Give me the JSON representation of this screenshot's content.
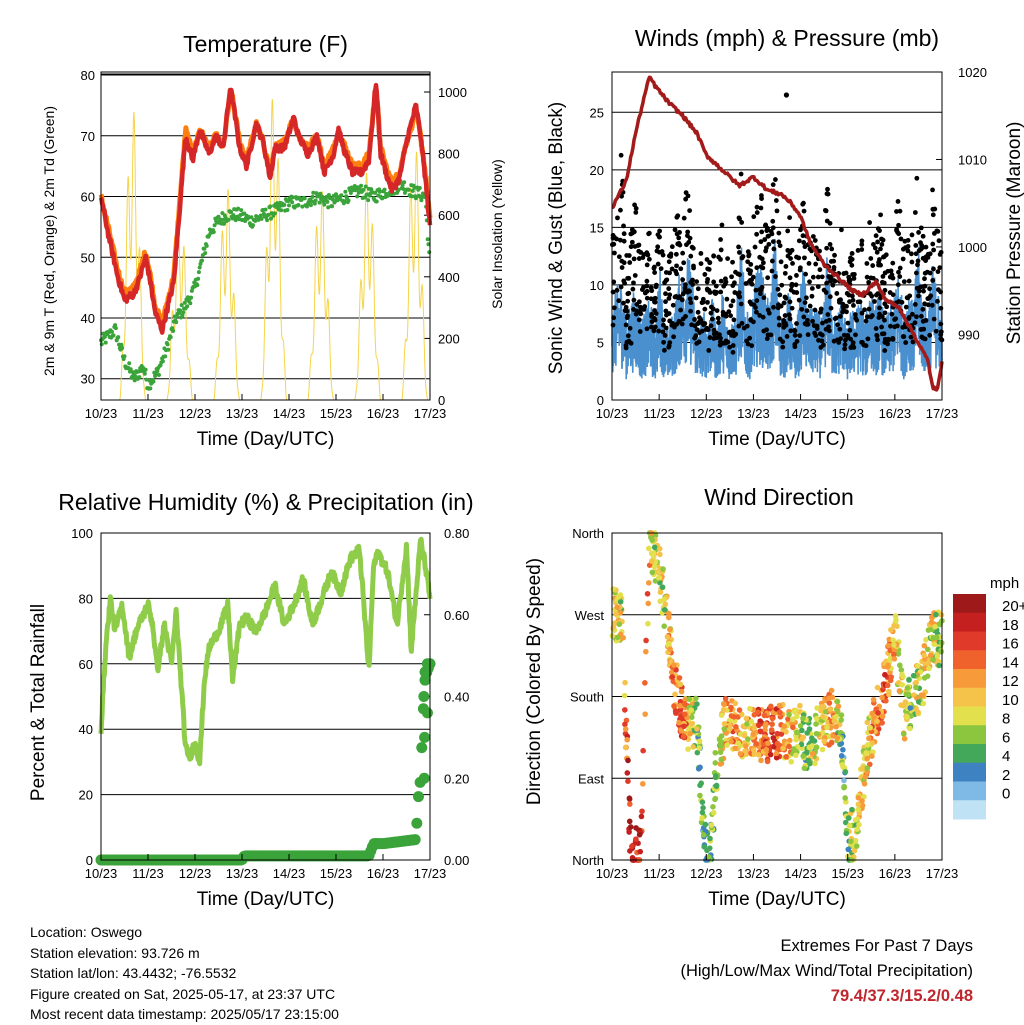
{
  "chart_data": [
    {
      "type": "line",
      "title": "Temperature (F)",
      "xlabel": "Time (Day/UTC)",
      "ylabel": "2m & 9m T (Red, Orange) & 2m Td (Green)",
      "y2label": "Solar Insolation (Yellow)",
      "x_ticks": [
        "10/23",
        "11/23",
        "12/23",
        "13/23",
        "14/23",
        "15/23",
        "16/23",
        "17/23"
      ],
      "ylim": [
        26.5,
        80.5
      ],
      "y_ticks": [
        30,
        40,
        50,
        60,
        70,
        80
      ],
      "y2lim": [
        0,
        1065
      ],
      "y2_ticks": [
        0,
        200,
        400,
        600,
        800,
        1000
      ],
      "grid": true,
      "series": [
        {
          "name": "2m T",
          "color": "#d62728",
          "x": [
            0,
            0.15,
            0.35,
            0.5,
            0.7,
            0.8,
            0.95,
            1.05,
            1.15,
            1.3,
            1.55,
            1.8,
            1.95,
            2.1,
            2.3,
            2.45,
            2.6,
            2.75,
            2.8,
            2.95,
            3.1,
            3.3,
            3.45,
            3.6,
            3.7,
            3.9,
            4.1,
            4.2,
            4.4,
            4.6,
            4.75,
            4.95,
            5.05,
            5.2,
            5.35,
            5.55,
            5.7,
            5.85,
            5.95,
            6.1,
            6.2,
            6.35,
            6.5,
            6.7,
            6.8,
            6.9,
            7.0
          ],
          "values": [
            60,
            54,
            47,
            43,
            44,
            46,
            50,
            46,
            41,
            38,
            46,
            70,
            66,
            71,
            67,
            70,
            68,
            78,
            76,
            68,
            65,
            72,
            69,
            63,
            68,
            68,
            73,
            70,
            67,
            70,
            64,
            67,
            71,
            67,
            64,
            64,
            66,
            79,
            67,
            63,
            61,
            63,
            69,
            75,
            70,
            63,
            55
          ]
        },
        {
          "name": "9m T",
          "color": "#ff7f0e",
          "x": [
            0,
            0.15,
            0.35,
            0.5,
            0.7,
            0.8,
            0.95,
            1.05,
            1.15,
            1.3,
            1.55,
            1.8,
            1.95,
            2.1,
            2.3,
            2.45,
            2.6,
            2.75,
            2.8,
            2.95,
            3.1,
            3.3,
            3.45,
            3.6,
            3.7,
            3.9,
            4.1,
            4.2,
            4.4,
            4.6,
            4.75,
            4.95,
            5.05,
            5.2,
            5.35,
            5.55,
            5.7,
            5.85,
            5.95,
            6.1,
            6.2,
            6.35,
            6.5,
            6.7,
            6.8,
            6.9,
            7.0
          ],
          "values": [
            60,
            55,
            48,
            44,
            45,
            47,
            51,
            47,
            42,
            39,
            47,
            71,
            67,
            71,
            68,
            70,
            68,
            77,
            76,
            69,
            66,
            72,
            69,
            64,
            68,
            69,
            73,
            70,
            68,
            70,
            65,
            68,
            71,
            68,
            65,
            65,
            67,
            78,
            68,
            64,
            62,
            64,
            69,
            74,
            70,
            64,
            56
          ]
        },
        {
          "name": "2m Td",
          "color": "#3aa33a",
          "x": [
            0,
            0.3,
            0.5,
            0.7,
            0.9,
            1.0,
            1.2,
            1.4,
            1.6,
            1.8,
            2.0,
            2.3,
            2.5,
            2.7,
            2.9,
            3.2,
            3.5,
            3.8,
            4.0,
            4.3,
            4.6,
            4.9,
            5.2,
            5.5,
            5.8,
            6.1,
            6.4,
            6.6,
            6.9,
            7.0
          ],
          "values": [
            36,
            38,
            33,
            30,
            32,
            29,
            31,
            35,
            40,
            42,
            45,
            54,
            56,
            57,
            57,
            56,
            57,
            58,
            59,
            59,
            60,
            59,
            60,
            61,
            60,
            61,
            62,
            61,
            60,
            48
          ]
        },
        {
          "name": "Solar Insolation",
          "axis": "y2",
          "color": "#f5d44a",
          "daily_peak": [
            950,
            620,
            700,
            1000,
            700,
            750,
            840,
            1060
          ],
          "values_note": "diurnal cycle per day"
        }
      ]
    },
    {
      "type": "scatter",
      "title": "Winds (mph) & Pressure (mb)",
      "xlabel": "Time (Day/UTC)",
      "ylabel": "Sonic Wind & Gust (Blue, Black)",
      "y2label": "Station Pressure (Maroon)",
      "x_ticks": [
        "10/23",
        "11/23",
        "12/23",
        "13/23",
        "14/23",
        "15/23",
        "16/23",
        "17/23"
      ],
      "ylim": [
        0,
        28.5
      ],
      "y_ticks": [
        0,
        5,
        10,
        15,
        20,
        25
      ],
      "y2lim": [
        982.5,
        1020
      ],
      "y2_ticks": [
        990,
        1000,
        1010,
        1020
      ],
      "grid": true,
      "pressure": {
        "x": [
          0,
          0.3,
          0.5,
          0.7,
          0.8,
          0.9,
          1.2,
          1.5,
          1.8,
          2.0,
          2.3,
          2.7,
          3.0,
          3.3,
          3.6,
          3.8,
          4.0,
          4.2,
          4.5,
          4.8,
          5.1,
          5.3,
          5.6,
          5.8,
          6.1,
          6.3,
          6.5,
          6.7,
          6.8,
          6.9,
          7.0
        ],
        "values": [
          1004.5,
          1007.5,
          1013,
          1017.5,
          1019.5,
          1018.5,
          1016.5,
          1015,
          1013,
          1010.5,
          1009,
          1007,
          1008,
          1006.5,
          1006,
          1005,
          1003.5,
          1000.5,
          998,
          996.5,
          995,
          994.5,
          996,
          994,
          993,
          991,
          989,
          987,
          984,
          983.5,
          987
        ]
      },
      "gust_envelope": [
        13,
        17,
        22,
        12,
        14,
        17,
        13,
        14,
        14,
        11,
        17,
        10,
        12,
        14,
        17,
        18,
        20,
        16,
        10,
        14,
        12,
        13,
        11,
        15,
        12,
        11,
        13,
        20,
        13,
        12,
        17,
        18,
        16,
        13,
        22,
        13,
        12,
        16,
        11,
        13,
        18,
        13,
        14,
        13,
        12,
        19,
        13,
        12,
        15,
        11,
        13,
        13,
        14,
        12,
        17,
        13,
        16,
        12,
        13,
        14,
        18,
        12,
        17,
        13,
        21,
        14,
        13,
        18,
        15,
        13
      ],
      "wind_envelope": [
        9,
        10,
        11,
        7,
        9,
        10,
        7,
        8,
        9,
        6,
        12,
        6,
        7,
        8,
        11,
        12,
        13,
        10,
        6,
        8,
        7,
        9,
        6,
        10,
        7,
        7,
        8,
        14,
        8,
        7,
        11,
        12,
        10,
        8,
        15,
        8,
        7,
        10,
        6,
        8,
        12,
        8,
        8,
        8,
        7,
        13,
        8,
        7,
        10,
        6,
        8,
        8,
        9,
        7,
        11,
        8,
        10,
        7,
        8,
        9,
        12,
        7,
        11,
        8,
        14,
        9,
        8,
        12,
        10,
        8
      ],
      "gust_peak": 26.5
    },
    {
      "type": "line",
      "title": "Relative Humidity (%) & Precipitation (in)",
      "xlabel": "Time (Day/UTC)",
      "ylabel": "Percent & Total Rainfall",
      "x_ticks": [
        "10/23",
        "11/23",
        "12/23",
        "13/23",
        "14/23",
        "15/23",
        "16/23",
        "17/23"
      ],
      "ylim": [
        0,
        100
      ],
      "y_ticks": [
        0,
        20,
        40,
        60,
        80,
        100
      ],
      "y2lim": [
        0,
        0.8
      ],
      "y2_ticks": [
        "0.00",
        "0.20",
        "0.40",
        "0.60",
        "0.80"
      ],
      "grid": true,
      "series": [
        {
          "name": "RH",
          "color": "#8fcc4a",
          "x": [
            0,
            0.1,
            0.2,
            0.3,
            0.45,
            0.6,
            0.75,
            0.9,
            1.0,
            1.1,
            1.2,
            1.35,
            1.5,
            1.6,
            1.7,
            1.8,
            1.9,
            2.0,
            2.1,
            2.2,
            2.3,
            2.5,
            2.7,
            2.8,
            2.95,
            3.1,
            3.3,
            3.5,
            3.7,
            3.9,
            4.1,
            4.3,
            4.5,
            4.7,
            4.9,
            5.1,
            5.3,
            5.5,
            5.7,
            5.8,
            5.9,
            6.1,
            6.3,
            6.5,
            6.6,
            6.8,
            6.9,
            7.0
          ],
          "values": [
            40,
            65,
            80,
            70,
            78,
            62,
            70,
            75,
            78,
            72,
            58,
            72,
            60,
            76,
            55,
            34,
            32,
            36,
            30,
            55,
            65,
            70,
            78,
            55,
            72,
            74,
            70,
            76,
            84,
            72,
            78,
            86,
            72,
            80,
            88,
            82,
            92,
            95,
            58,
            90,
            94,
            88,
            72,
            96,
            64,
            98,
            90,
            80
          ]
        },
        {
          "name": "Total Precipitation",
          "axis": "y2",
          "color": "#3aa33a",
          "x": [
            0,
            1.0,
            2.0,
            3.0,
            3.05,
            4.0,
            5.0,
            5.7,
            5.8,
            6.0,
            6.7,
            6.75,
            6.8,
            6.85,
            6.9,
            7.0
          ],
          "values": [
            0,
            0,
            0,
            0,
            0.01,
            0.01,
            0.01,
            0.01,
            0.04,
            0.04,
            0.05,
            0.15,
            0.2,
            0.35,
            0.45,
            0.48
          ]
        }
      ]
    },
    {
      "type": "scatter",
      "title": "Wind Direction",
      "xlabel": "Time (Day/UTC)",
      "ylabel": "Direction (Colored By Speed)",
      "x_ticks": [
        "10/23",
        "11/23",
        "12/23",
        "13/23",
        "14/23",
        "15/23",
        "16/23",
        "17/23"
      ],
      "y_ticks": [
        "North",
        "East",
        "South",
        "West",
        "North"
      ],
      "ylim": [
        0,
        360
      ],
      "grid": true,
      "legend": {
        "title": "mph",
        "placement": "right",
        "labels": [
          "20+",
          "18",
          "16",
          "14",
          "12",
          "10",
          "8",
          "6",
          "4",
          "2",
          "0"
        ],
        "colors": [
          "#9e1a1a",
          "#c42020",
          "#e03a2a",
          "#f0622c",
          "#f79a3a",
          "#f5c24a",
          "#e3e04e",
          "#8cc63e",
          "#44a85a",
          "#3f82c2",
          "#7fb9e6",
          "#bfe3f5"
        ]
      },
      "direction_trace": {
        "x": [
          0,
          0.2,
          0.4,
          0.6,
          0.8,
          0.95,
          1.1,
          1.3,
          1.5,
          1.6,
          1.8,
          1.95,
          2.1,
          2.2,
          2.4,
          2.6,
          2.8,
          3.0,
          3.2,
          3.4,
          3.6,
          3.8,
          4.0,
          4.1,
          4.3,
          4.5,
          4.7,
          4.9,
          5.0,
          5.2,
          5.4,
          5.6,
          5.8,
          6.0,
          6.2,
          6.4,
          6.6,
          6.8,
          7.0
        ],
        "values": [
          270,
          265,
          10,
          5,
          355,
          330,
          290,
          200,
          160,
          150,
          155,
          20,
          10,
          100,
          150,
          150,
          140,
          145,
          135,
          140,
          145,
          135,
          150,
          125,
          135,
          150,
          160,
          130,
          15,
          40,
          120,
          160,
          190,
          250,
          160,
          180,
          200,
          250,
          240
        ],
        "speed_level": [
          5,
          5,
          11,
          10,
          6,
          5,
          5,
          7,
          8,
          6,
          4,
          3,
          3,
          4,
          6,
          7,
          6,
          7,
          8,
          9,
          7,
          6,
          5,
          4,
          5,
          6,
          7,
          3,
          4,
          5,
          6,
          7,
          8,
          6,
          5,
          4,
          6,
          5,
          4
        ]
      }
    }
  ],
  "footer": {
    "location": "Location: Oswego",
    "elevation": "Station elevation: 93.726 m",
    "latlon": "Station lat/lon: 43.4432; -76.5532",
    "created": "Figure created on Sat, 2025-05-17, at 23:37 UTC",
    "recent": "Most recent data timestamp: 2025/05/17 23:15:00"
  },
  "extremes": {
    "line1": "Extremes For Past 7 Days",
    "line2": "(High/Low/Max Wind/Total Precipitation)",
    "values": "79.4/37.3/15.2/0.48"
  }
}
